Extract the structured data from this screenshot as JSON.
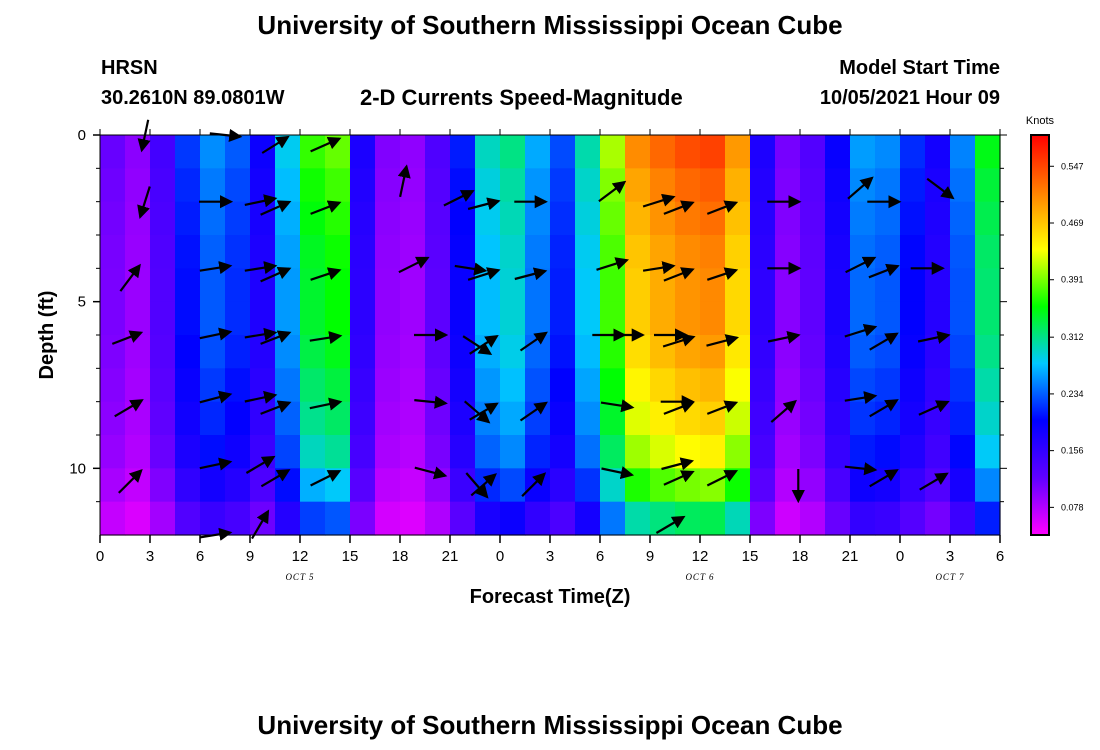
{
  "page": {
    "title_top": "University of Southern Mississippi Ocean Cube",
    "title_bottom": "University of Southern Mississippi Ocean Cube",
    "station": "HRSN",
    "coords": "30.2610N  89.0801W",
    "plot_title": "2-D Currents Speed-Magnitude",
    "model_start_label": "Model Start Time",
    "model_start_value": "10/05/2021 Hour 09"
  },
  "chart_data": {
    "type": "heatmap",
    "title": "2-D Currents Speed-Magnitude",
    "xlabel": "Forecast Time(Z)",
    "ylabel": "Depth (ft)",
    "x_hours_range": [
      0,
      54
    ],
    "ylim": [
      0,
      12
    ],
    "y_inverted": true,
    "x_tick_labels": [
      "0",
      "3",
      "6",
      "9",
      "12",
      "15",
      "18",
      "21",
      "0",
      "3",
      "6",
      "9",
      "12",
      "15",
      "18",
      "21",
      "0",
      "3",
      "6"
    ],
    "y_tick_labels": [
      "0",
      "5",
      "10"
    ],
    "y_tick_values": [
      0,
      5,
      10
    ],
    "date_labels": [
      {
        "text": "OCT 5",
        "hour": 12
      },
      {
        "text": "OCT 6",
        "hour": 36
      },
      {
        "text": "OCT 7",
        "hour": 51
      }
    ],
    "colorbar": {
      "unit": "Knots",
      "min": 0.04,
      "max": 0.59,
      "tick_values": [
        0.547,
        0.469,
        0.391,
        0.312,
        0.234,
        0.156,
        0.078
      ],
      "tick_labels": [
        "0.547",
        "0.469",
        "0.391",
        "0.312",
        "0.234",
        "0.156",
        "0.078"
      ],
      "colors": [
        "#ff00ff",
        "#6000ff",
        "#0000ff",
        "#00c8ff",
        "#00ff00",
        "#ffff00",
        "#ff8000",
        "#ff0000"
      ]
    },
    "depths": [
      0,
      1,
      2,
      3,
      4,
      5,
      6,
      7,
      8,
      9,
      10,
      11,
      12
    ],
    "time_hours": [
      0,
      2,
      4,
      6,
      8,
      10,
      12,
      14,
      16,
      18,
      20,
      22,
      24,
      26,
      28,
      30,
      32,
      34,
      36,
      38,
      40,
      42,
      44,
      46,
      48,
      50,
      52,
      54
    ],
    "speed_profile": [
      0.13,
      0.09,
      0.15,
      0.26,
      0.24,
      0.18,
      0.34,
      0.42,
      0.14,
      0.08,
      0.12,
      0.22,
      0.34,
      0.27,
      0.22,
      0.35,
      0.5,
      0.53,
      0.55,
      0.55,
      0.12,
      0.1,
      0.18,
      0.27,
      0.24,
      0.17,
      0.26,
      0.4
    ],
    "depth_factor": [
      1.0,
      1.0,
      0.97,
      0.95,
      0.93,
      0.92,
      0.92,
      0.9,
      0.87,
      0.84,
      0.8,
      0.72,
      0.6
    ],
    "arrows": [
      {
        "t": 2.7,
        "d": 0.0,
        "u": -0.2,
        "v": -0.95
      },
      {
        "t": 7.5,
        "d": 0.0,
        "u": 0.95,
        "v": -0.1
      },
      {
        "t": 10.5,
        "d": 0.3,
        "u": 0.8,
        "v": 0.5
      },
      {
        "t": 13.5,
        "d": 0.3,
        "u": 0.9,
        "v": 0.4
      },
      {
        "t": 18.2,
        "d": 1.4,
        "u": 0.2,
        "v": 0.95
      },
      {
        "t": 2.7,
        "d": 2.0,
        "u": -0.3,
        "v": -0.95
      },
      {
        "t": 6.9,
        "d": 2.0,
        "u": 1,
        "v": 0
      },
      {
        "t": 9.6,
        "d": 2.0,
        "u": 0.95,
        "v": 0.2
      },
      {
        "t": 10.5,
        "d": 2.2,
        "u": 0.9,
        "v": 0.4
      },
      {
        "t": 13.5,
        "d": 2.2,
        "u": 0.9,
        "v": 0.35
      },
      {
        "t": 21.5,
        "d": 1.9,
        "u": 0.9,
        "v": 0.45
      },
      {
        "t": 23.0,
        "d": 2.1,
        "u": 0.95,
        "v": 0.25
      },
      {
        "t": 25.8,
        "d": 2.0,
        "u": 0.98,
        "v": 0
      },
      {
        "t": 30.7,
        "d": 1.7,
        "u": 0.8,
        "v": 0.6
      },
      {
        "t": 33.5,
        "d": 2.0,
        "u": 0.95,
        "v": 0.3
      },
      {
        "t": 34.7,
        "d": 2.2,
        "u": 0.9,
        "v": 0.35
      },
      {
        "t": 37.3,
        "d": 2.2,
        "u": 0.9,
        "v": 0.35
      },
      {
        "t": 41.0,
        "d": 2.0,
        "u": 1,
        "v": 0
      },
      {
        "t": 45.6,
        "d": 1.6,
        "u": 0.75,
        "v": 0.65
      },
      {
        "t": 47.0,
        "d": 2.0,
        "u": 1,
        "v": 0
      },
      {
        "t": 50.4,
        "d": 1.6,
        "u": 0.8,
        "v": -0.6
      },
      {
        "t": 1.8,
        "d": 4.3,
        "u": 0.6,
        "v": 0.8
      },
      {
        "t": 6.9,
        "d": 4.0,
        "u": 0.95,
        "v": 0.15
      },
      {
        "t": 9.6,
        "d": 4.0,
        "u": 0.95,
        "v": 0.15
      },
      {
        "t": 10.5,
        "d": 4.2,
        "u": 0.9,
        "v": 0.4
      },
      {
        "t": 13.5,
        "d": 4.2,
        "u": 0.9,
        "v": 0.3
      },
      {
        "t": 18.8,
        "d": 3.9,
        "u": 0.9,
        "v": 0.45
      },
      {
        "t": 22.2,
        "d": 4.0,
        "u": 0.95,
        "v": -0.15
      },
      {
        "t": 23.0,
        "d": 4.2,
        "u": 0.95,
        "v": 0.3
      },
      {
        "t": 25.8,
        "d": 4.2,
        "u": 0.95,
        "v": 0.25
      },
      {
        "t": 30.7,
        "d": 3.9,
        "u": 0.95,
        "v": 0.3
      },
      {
        "t": 33.5,
        "d": 4.0,
        "u": 0.95,
        "v": 0.15
      },
      {
        "t": 34.7,
        "d": 4.2,
        "u": 0.9,
        "v": 0.35
      },
      {
        "t": 37.3,
        "d": 4.2,
        "u": 0.9,
        "v": 0.3
      },
      {
        "t": 41.0,
        "d": 4.0,
        "u": 1,
        "v": 0
      },
      {
        "t": 45.6,
        "d": 3.9,
        "u": 0.9,
        "v": 0.45
      },
      {
        "t": 47.0,
        "d": 4.1,
        "u": 0.9,
        "v": 0.35
      },
      {
        "t": 49.6,
        "d": 4.0,
        "u": 1,
        "v": 0
      },
      {
        "t": 1.6,
        "d": 6.1,
        "u": 0.9,
        "v": 0.35
      },
      {
        "t": 6.9,
        "d": 6.0,
        "u": 0.95,
        "v": 0.2
      },
      {
        "t": 9.6,
        "d": 6.0,
        "u": 0.95,
        "v": 0.15
      },
      {
        "t": 10.5,
        "d": 6.1,
        "u": 0.9,
        "v": 0.35
      },
      {
        "t": 13.5,
        "d": 6.1,
        "u": 0.95,
        "v": 0.15
      },
      {
        "t": 19.8,
        "d": 6.0,
        "u": 1,
        "v": 0
      },
      {
        "t": 22.6,
        "d": 6.3,
        "u": 0.85,
        "v": -0.55
      },
      {
        "t": 23.0,
        "d": 6.3,
        "u": 0.85,
        "v": 0.55
      },
      {
        "t": 26.0,
        "d": 6.2,
        "u": 0.8,
        "v": 0.55
      },
      {
        "t": 30.5,
        "d": 6.0,
        "u": 1,
        "v": 0
      },
      {
        "t": 31.6,
        "d": 6.0,
        "u": 1,
        "v": 0
      },
      {
        "t": 34.2,
        "d": 6.0,
        "u": 1,
        "v": 0
      },
      {
        "t": 34.7,
        "d": 6.2,
        "u": 0.95,
        "v": 0.3
      },
      {
        "t": 37.3,
        "d": 6.2,
        "u": 0.95,
        "v": 0.25
      },
      {
        "t": 41.0,
        "d": 6.1,
        "u": 0.95,
        "v": 0.2
      },
      {
        "t": 45.6,
        "d": 5.9,
        "u": 0.95,
        "v": 0.3
      },
      {
        "t": 47.0,
        "d": 6.2,
        "u": 0.85,
        "v": 0.5
      },
      {
        "t": 50.0,
        "d": 6.1,
        "u": 0.95,
        "v": 0.2
      },
      {
        "t": 1.7,
        "d": 8.2,
        "u": 0.85,
        "v": 0.5
      },
      {
        "t": 6.9,
        "d": 7.9,
        "u": 0.95,
        "v": 0.25
      },
      {
        "t": 9.6,
        "d": 7.9,
        "u": 0.95,
        "v": 0.2
      },
      {
        "t": 10.5,
        "d": 8.2,
        "u": 0.9,
        "v": 0.35
      },
      {
        "t": 13.5,
        "d": 8.1,
        "u": 0.95,
        "v": 0.2
      },
      {
        "t": 19.8,
        "d": 8.0,
        "u": 0.98,
        "v": -0.1
      },
      {
        "t": 22.6,
        "d": 8.3,
        "u": 0.75,
        "v": -0.65
      },
      {
        "t": 23.0,
        "d": 8.3,
        "u": 0.85,
        "v": 0.5
      },
      {
        "t": 26.0,
        "d": 8.3,
        "u": 0.8,
        "v": 0.55
      },
      {
        "t": 31.0,
        "d": 8.1,
        "u": 0.98,
        "v": -0.15
      },
      {
        "t": 34.6,
        "d": 8.0,
        "u": 1,
        "v": 0
      },
      {
        "t": 34.7,
        "d": 8.2,
        "u": 0.9,
        "v": 0.35
      },
      {
        "t": 37.3,
        "d": 8.2,
        "u": 0.9,
        "v": 0.35
      },
      {
        "t": 41.0,
        "d": 8.3,
        "u": 0.75,
        "v": 0.65
      },
      {
        "t": 45.6,
        "d": 7.9,
        "u": 0.95,
        "v": 0.15
      },
      {
        "t": 47.0,
        "d": 8.2,
        "u": 0.85,
        "v": 0.5
      },
      {
        "t": 50.0,
        "d": 8.2,
        "u": 0.9,
        "v": 0.4
      },
      {
        "t": 1.8,
        "d": 10.4,
        "u": 0.7,
        "v": 0.7
      },
      {
        "t": 6.9,
        "d": 9.9,
        "u": 0.95,
        "v": 0.2
      },
      {
        "t": 9.6,
        "d": 9.9,
        "u": 0.85,
        "v": 0.5
      },
      {
        "t": 10.5,
        "d": 10.3,
        "u": 0.85,
        "v": 0.5
      },
      {
        "t": 13.5,
        "d": 10.3,
        "u": 0.9,
        "v": 0.45
      },
      {
        "t": 19.8,
        "d": 10.1,
        "u": 0.95,
        "v": -0.25
      },
      {
        "t": 22.6,
        "d": 10.5,
        "u": 0.65,
        "v": -0.75
      },
      {
        "t": 23.0,
        "d": 10.5,
        "u": 0.75,
        "v": 0.65
      },
      {
        "t": 26.0,
        "d": 10.5,
        "u": 0.7,
        "v": 0.7
      },
      {
        "t": 31.0,
        "d": 10.1,
        "u": 0.95,
        "v": -0.2
      },
      {
        "t": 34.6,
        "d": 9.9,
        "u": 0.95,
        "v": 0.25
      },
      {
        "t": 34.7,
        "d": 10.3,
        "u": 0.9,
        "v": 0.4
      },
      {
        "t": 37.3,
        "d": 10.3,
        "u": 0.9,
        "v": 0.45
      },
      {
        "t": 41.9,
        "d": 10.5,
        "u": 0,
        "v": -1
      },
      {
        "t": 45.6,
        "d": 10.0,
        "u": 0.95,
        "v": -0.1
      },
      {
        "t": 47.0,
        "d": 10.3,
        "u": 0.85,
        "v": 0.5
      },
      {
        "t": 50.0,
        "d": 10.4,
        "u": 0.85,
        "v": 0.5
      },
      {
        "t": 6.9,
        "d": 12.0,
        "u": 0.95,
        "v": 0.15
      },
      {
        "t": 9.6,
        "d": 11.7,
        "u": 0.5,
        "v": 0.85
      },
      {
        "t": 34.2,
        "d": 11.7,
        "u": 0.85,
        "v": 0.5
      }
    ]
  }
}
